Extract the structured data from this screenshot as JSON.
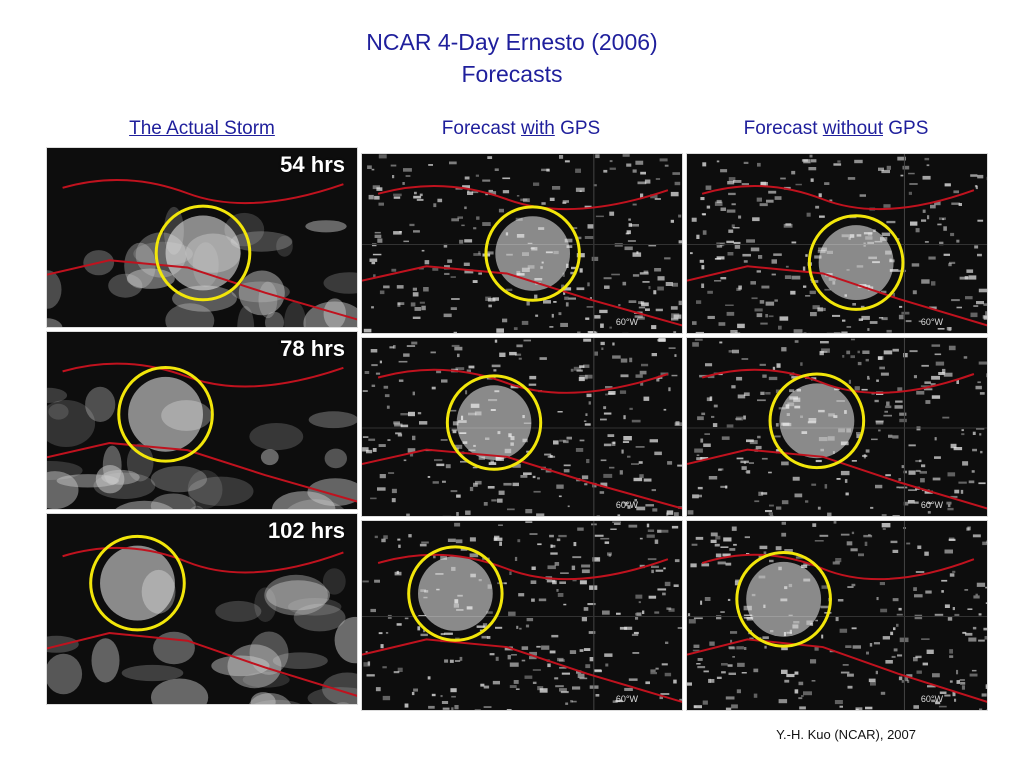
{
  "title": {
    "line1": "NCAR 4-Day Ernesto (2006)",
    "line2": "Forecasts"
  },
  "columns": {
    "actual": {
      "label": "The Actual Storm"
    },
    "with_gps": {
      "prefix": "Forecast ",
      "emph": "with",
      "suffix": " GPS"
    },
    "without_gps": {
      "prefix": "Forecast ",
      "emph": "without",
      "suffix": " GPS"
    }
  },
  "rows": [
    {
      "hours": "54 hrs"
    },
    {
      "hours": "78 hrs"
    },
    {
      "hours": "102 hrs"
    }
  ],
  "forecast_lon_label": "60°W",
  "credit": "Y.-H. Kuo (NCAR), 2007",
  "colors": {
    "title": "#1f1f9c",
    "circle": "#f2e60a",
    "coastline": "#c0121e",
    "cloud": "#e6e6e6",
    "background": "#0d0d0d"
  }
}
